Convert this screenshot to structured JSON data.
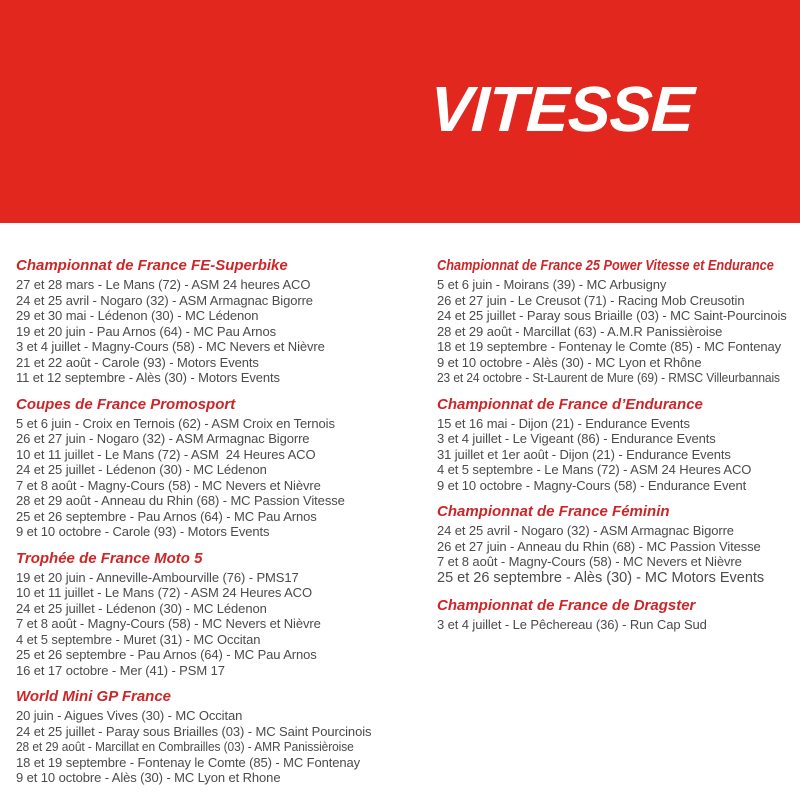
{
  "page": {
    "banner": {
      "title": "VITESSE",
      "background_color": "#E2271F",
      "title_color": "#FFFFFF"
    },
    "colors": {
      "heading_red": "#CE2628",
      "body_text": "#4B4B4D",
      "page_background": "#FFFFFF"
    },
    "columns": [
      {
        "sections": [
          {
            "heading": "Championnat de France FE-Superbike",
            "events": [
              "27 et 28 mars - Le Mans (72) - ASM 24 heures ACO",
              "24 et 25 avril - Nogaro (32) - ASM Armagnac Bigorre",
              "29 et 30 mai - Lédenon (30) - MC Lédenon",
              "19 et 20 juin - Pau Arnos (64) - MC Pau Arnos",
              "3 et 4 juillet - Magny-Cours (58) - MC Nevers et Nièvre",
              "21 et 22 août - Carole (93) - Motors Events",
              "11 et 12 septembre - Alès (30) - Motors Events"
            ]
          },
          {
            "heading": "Coupes de France Promosport",
            "events": [
              "5 et 6 juin - Croix en Ternois (62) - ASM Croix en Ternois",
              "26 et 27 juin - Nogaro (32) - ASM Armagnac Bigorre",
              "10 et 11 juillet - Le Mans (72) - ASM  24 Heures ACO",
              "24 et 25 juillet - Lédenon (30) - MC Lédenon",
              "7 et 8 août - Magny-Cours (58) - MC Nevers et Nièvre",
              "28 et 29 août - Anneau du Rhin (68) - MC Passion Vitesse",
              "25 et 26 septembre - Pau Arnos (64) - MC Pau Arnos",
              "9 et 10 octobre - Carole (93) - Motors Events"
            ]
          },
          {
            "heading": "Trophée de France Moto 5",
            "events": [
              "19 et 20 juin - Anneville-Ambourville (76) - PMS17",
              "10 et 11 juillet - Le Mans (72) - ASM 24 Heures ACO",
              "24 et 25 juillet - Lédenon (30) - MC Lédenon",
              "7 et 8 août - Magny-Cours (58) - MC Nevers et Nièvre",
              "4 et 5 septembre - Muret (31) - MC Occitan",
              "25 et 26 septembre - Pau Arnos (64) - MC Pau Arnos",
              "16 et 17 octobre - Mer (41) - PSM 17"
            ]
          },
          {
            "heading": "World Mini GP France",
            "events": [
              "20 juin - Aigues Vives (30) - MC Occitan",
              "24 et 25 juillet - Paray sous Briailles (03) - MC Saint Pourcinois",
              {
                "text": "28 et 29 août - Marcillat en Combrailles (03) - AMR Panissièroise",
                "style": "condensed"
              },
              "18 et 19 septembre - Fontenay le Comte (85) - MC Fontenay",
              "9 et 10 octobre - Alès (30) - MC Lyon et Rhone"
            ]
          }
        ]
      },
      {
        "sections": [
          {
            "heading": "Championnat de France 25 Power Vitesse et Endurance",
            "heading_style": "condensed",
            "events": [
              "5 et 6 juin - Moirans (39) - MC Arbusigny",
              "26 et 27 juin - Le Creusot (71) - Racing Mob Creusotin",
              "24 et 25 juillet - Paray sous Briaille (03) - MC Saint-Pourcinois",
              "28 et 29 août - Marcillat (63) - A.M.R Panissièroise",
              "18 et 19 septembre - Fontenay le Comte (85) - MC Fontenay",
              "9 et 10 octobre - Alès (30) - MC Lyon et Rhône",
              {
                "text": "23 et 24 octobre - St-Laurent de Mure (69) - RMSC Villeurbannais",
                "style": "condensed"
              }
            ]
          },
          {
            "heading": "Championnat de France d’Endurance",
            "events": [
              "15 et 16 mai - Dijon (21) - Endurance Events",
              "3 et 4 juillet - Le Vigeant (86) - Endurance Events",
              "31 juillet et 1er août - Dijon (21) - Endurance Events",
              "4 et 5 septembre - Le Mans (72) - ASM 24 Heures ACO",
              "9 et 10 octobre - Magny-Cours (58) - Endurance Event"
            ]
          },
          {
            "heading": "Championnat de France Féminin",
            "events": [
              "24 et 25 avril - Nogaro (32) - ASM Armagnac Bigorre",
              "26 et 27 juin - Anneau du Rhin (68) - MC Passion Vitesse",
              "7 et 8 août - Magny-Cours (58) - MC Nevers et Nièvre",
              {
                "text": "25 et 26 septembre - Alès (30) - MC Motors Events",
                "style": "large"
              }
            ]
          },
          {
            "heading": "Championnat de France de Dragster",
            "events": [
              "3 et 4 juillet - Le Pêchereau (36) - Run Cap Sud"
            ]
          }
        ]
      }
    ]
  }
}
